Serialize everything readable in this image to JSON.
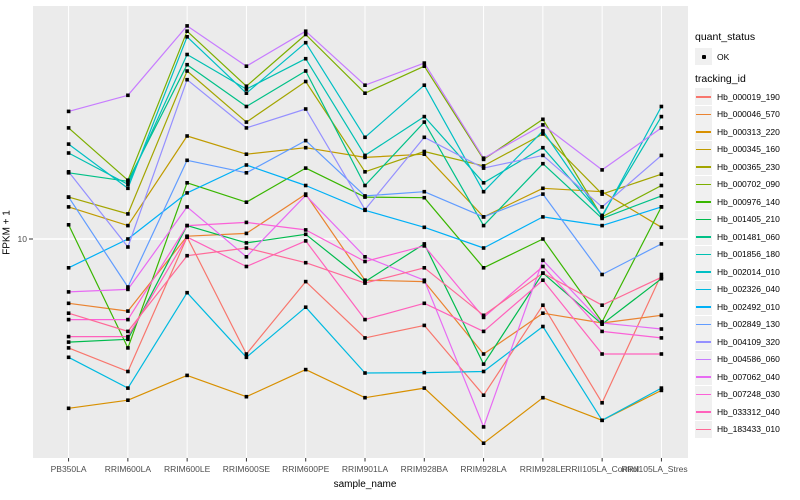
{
  "chart_data": {
    "type": "line",
    "title": "",
    "xlabel": "sample_name",
    "ylabel": "FPKM + 1",
    "y_axis": {
      "scale": "log10",
      "tick_values": [
        10
      ],
      "tick_labels": [
        "10"
      ],
      "approx_range": [
        1.1,
        100
      ]
    },
    "grid": "on",
    "panel_bg": "#EBEBEB",
    "gridline_color": "#FFFFFF",
    "marker": {
      "shape": "black-point",
      "color": "#000000"
    },
    "legend_position": "right",
    "categories": [
      "PB350LA",
      "RRIM600LA",
      "RRIM600LE",
      "RRIM600SE",
      "RRIM600PE",
      "RRIM901LA",
      "RRIM928BA",
      "RRIM928LA",
      "RRIM928LE",
      "RRII105LA_Control",
      "RRII105LA_Stressed"
    ],
    "legend": {
      "quant_status_title": "quant_status",
      "quant_status_items": [
        "OK"
      ],
      "tracking_id_title": "tracking_id"
    },
    "series": [
      {
        "name": "Hb_000019_190",
        "color": "#F8766D",
        "values": [
          3.2,
          2.5,
          10.2,
          3.0,
          6.4,
          3.55,
          4.05,
          1.95,
          5.0,
          1.8,
          6.9
        ]
      },
      {
        "name": "Hb_000046_570",
        "color": "#EA8331",
        "values": [
          5.1,
          4.7,
          10.3,
          10.6,
          16.0,
          6.5,
          6.4,
          3.0,
          4.6,
          4.15,
          4.5
        ]
      },
      {
        "name": "Hb_000313_220",
        "color": "#D89000",
        "values": [
          1.7,
          1.85,
          2.4,
          1.92,
          2.55,
          1.9,
          2.1,
          1.18,
          1.9,
          1.5,
          2.05
        ]
      },
      {
        "name": "Hb_000345_160",
        "color": "#C09B00",
        "values": [
          14,
          11.5,
          29.4,
          24.3,
          26,
          23.5,
          24.3,
          12.6,
          17,
          16.4,
          11.3
        ]
      },
      {
        "name": "Hb_000365_230",
        "color": "#A3A500",
        "values": [
          15.5,
          13,
          58,
          34,
          52,
          20.2,
          25,
          21.5,
          30,
          16,
          19.7
        ]
      },
      {
        "name": "Hb_000702_090",
        "color": "#7CAE00",
        "values": [
          32,
          18.5,
          88,
          49.5,
          85,
          46,
          61,
          23,
          35,
          12.6,
          17.5
        ]
      },
      {
        "name": "Hb_000976_140",
        "color": "#39B600",
        "values": [
          11.6,
          3.2,
          18,
          14.7,
          21,
          15.5,
          15.4,
          7.4,
          10,
          4.2,
          14
        ]
      },
      {
        "name": "Hb_001405_210",
        "color": "#00BB4E",
        "values": [
          3.4,
          3.5,
          11.5,
          9.6,
          10.5,
          6.4,
          9.5,
          2.7,
          7.0,
          4.1,
          6.6
        ]
      },
      {
        "name": "Hb_001481_060",
        "color": "#00C087",
        "values": [
          20,
          18.3,
          62,
          40,
          58,
          17.5,
          34,
          11.5,
          22,
          12.4,
          15.7
        ]
      },
      {
        "name": "Hb_001856_180",
        "color": "#00C0B2",
        "values": [
          24.6,
          17.7,
          69,
          48,
          66,
          24,
          36,
          18,
          26,
          12.8,
          36
        ]
      },
      {
        "name": "Hb_002014_010",
        "color": "#00BFC4",
        "values": [
          27,
          17,
          83,
          46,
          78,
          29,
          50,
          16.4,
          31,
          12.6,
          40
        ]
      },
      {
        "name": "Hb_002326_040",
        "color": "#00BAE0",
        "values": [
          2.9,
          2.1,
          5.7,
          2.9,
          4.9,
          2.46,
          2.47,
          2.5,
          4.0,
          1.5,
          2.1
        ]
      },
      {
        "name": "Hb_002492_010",
        "color": "#00B0F6",
        "values": [
          7.4,
          10,
          16.2,
          21.7,
          17.5,
          13.5,
          11.3,
          9.1,
          12.6,
          11.5,
          14
        ]
      },
      {
        "name": "Hb_002849_130",
        "color": "#619CFF",
        "values": [
          15.5,
          6.05,
          22.8,
          20,
          28,
          15.7,
          16.4,
          12.6,
          16,
          6.9,
          9.5
        ]
      },
      {
        "name": "Hb_004109_320",
        "color": "#9590FF",
        "values": [
          20.2,
          9.2,
          53,
          32,
          39,
          13.6,
          29,
          21,
          24,
          14,
          24
        ]
      },
      {
        "name": "Hb_004586_060",
        "color": "#C77CFF",
        "values": [
          38,
          45,
          93,
          61,
          88,
          50,
          63,
          23.3,
          33,
          20.6,
          32
        ]
      },
      {
        "name": "Hb_007062_040",
        "color": "#E76BF3",
        "values": [
          5.75,
          5.9,
          14,
          8.3,
          15.8,
          8.3,
          6.5,
          1.4,
          8.0,
          4.15,
          3.9
        ]
      },
      {
        "name": "Hb_007248_030",
        "color": "#FB61D7",
        "values": [
          4.3,
          4.3,
          11.5,
          11.9,
          11,
          7.9,
          9.3,
          4.4,
          7.5,
          3.8,
          3.55
        ]
      },
      {
        "name": "Hb_033312_040",
        "color": "#FF62BC",
        "values": [
          3.6,
          3.6,
          10.2,
          7.5,
          9.8,
          4.3,
          5.1,
          3.8,
          6.5,
          3.0,
          3.0
        ]
      },
      {
        "name": "Hb_183433_010",
        "color": "#FF6A98",
        "values": [
          4.6,
          3.8,
          8.4,
          9.1,
          7.8,
          6.3,
          7.4,
          4.5,
          7.0,
          5.0,
          6.7
        ]
      }
    ]
  }
}
